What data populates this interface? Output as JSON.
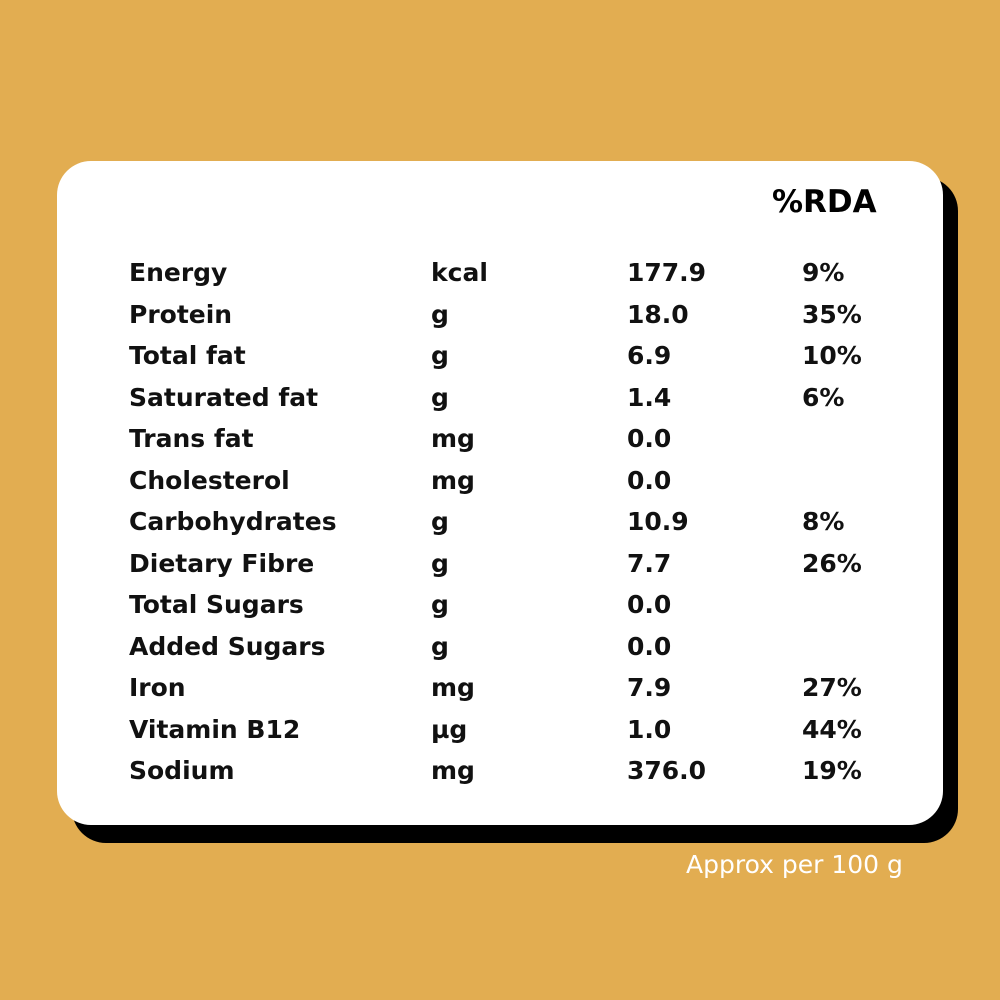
{
  "rda_header": "%RDA",
  "rows": [
    {
      "name": "Energy",
      "unit": "kcal",
      "value": "177.9",
      "rda": "9%"
    },
    {
      "name": "Protein",
      "unit": "g",
      "value": "18.0",
      "rda": "35%"
    },
    {
      "name": "Total fat",
      "unit": "g",
      "value": "6.9",
      "rda": "10%"
    },
    {
      "name": "Saturated fat",
      "unit": "g",
      "value": "1.4",
      "rda": "6%"
    },
    {
      "name": "Trans fat",
      "unit": "mg",
      "value": "0.0",
      "rda": ""
    },
    {
      "name": "Cholesterol",
      "unit": "mg",
      "value": "0.0",
      "rda": ""
    },
    {
      "name": "Carbohydrates",
      "unit": "g",
      "value": "10.9",
      "rda": "8%"
    },
    {
      "name": "Dietary Fibre",
      "unit": "g",
      "value": "7.7",
      "rda": "26%"
    },
    {
      "name": "Total Sugars",
      "unit": "g",
      "value": "0.0",
      "rda": ""
    },
    {
      "name": "Added Sugars",
      "unit": "g",
      "value": "0.0",
      "rda": ""
    },
    {
      "name": "Iron",
      "unit": "mg",
      "value": "7.9",
      "rda": "27%"
    },
    {
      "name": "Vitamin B12",
      "unit": "µg",
      "value": "1.0",
      "rda": "44%"
    },
    {
      "name": "Sodium",
      "unit": "mg",
      "value": "376.0",
      "rda": "19%"
    }
  ],
  "footnote": "Approx per 100 g",
  "colors": {
    "background": "#E2AD51",
    "card": "#FFFFFF",
    "card_shadow": "#000000",
    "text": "#111111",
    "footnote": "#FFFFFF"
  }
}
